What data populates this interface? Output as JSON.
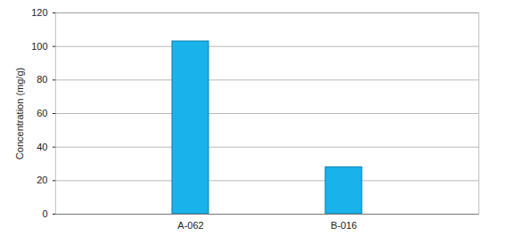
{
  "chart_data": {
    "type": "bar",
    "categories": [
      "A-062",
      "B-016"
    ],
    "values": [
      103,
      28
    ],
    "color": "#1ab2ea",
    "y_label": "Concentration (mg/g)",
    "ylim": [
      0,
      120
    ],
    "yticks": [
      0,
      20,
      40,
      60,
      80,
      100,
      120
    ],
    "grid": true
  }
}
